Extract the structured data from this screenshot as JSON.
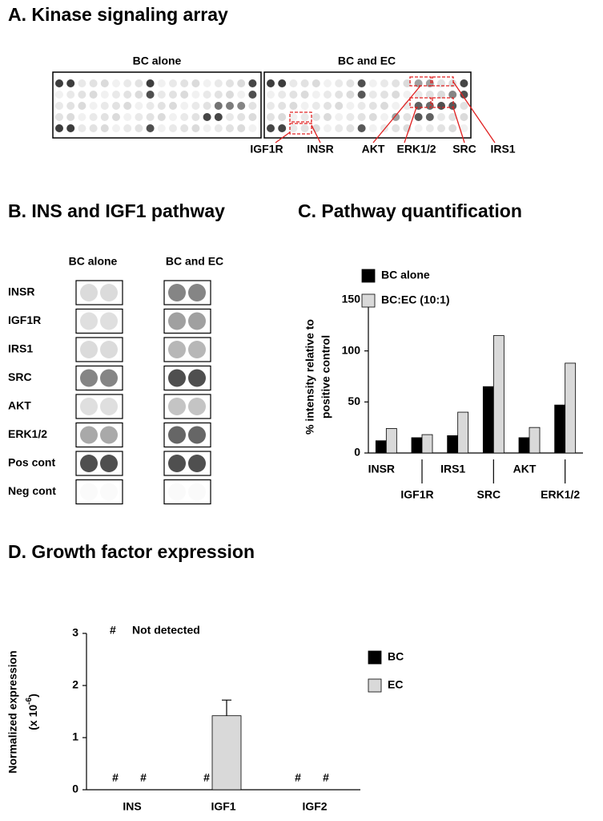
{
  "panel_a": {
    "title": "A. Kinase signaling array",
    "blots": [
      "BC alone",
      "BC and EC"
    ],
    "labels": [
      "IGF1R",
      "INSR",
      "AKT",
      "ERK1/2",
      "SRC",
      "IRS1"
    ]
  },
  "panel_b": {
    "title": "B. INS and IGF1 pathway",
    "columns": [
      "BC alone",
      "BC and EC"
    ],
    "rows": [
      "INSR",
      "IGF1R",
      "IRS1",
      "SRC",
      "AKT",
      "ERK1/2",
      "Pos cont",
      "Neg cont"
    ]
  },
  "chart_data": [
    {
      "type": "bar",
      "title": "C. Pathway quantification",
      "y_label": [
        "% intensity relative to",
        "positive control"
      ],
      "categories": [
        "INSR",
        "IGF1R",
        "IRS1",
        "SRC",
        "AKT",
        "ERK1/2"
      ],
      "series": [
        {
          "name": "BC alone",
          "color": "#000000",
          "values": [
            12,
            15,
            17,
            65,
            15,
            47
          ]
        },
        {
          "name": "BC:EC (10:1)",
          "color": "#d9d9d9",
          "values": [
            24,
            18,
            40,
            115,
            25,
            88
          ]
        }
      ],
      "ylim": [
        0,
        150
      ],
      "yticks": [
        0,
        50,
        100,
        150
      ],
      "legend": "top-left"
    },
    {
      "type": "bar",
      "title": "D. Growth factor expression",
      "y_label": [
        "Normalized expression",
        "(x 10",
        "-6",
        ")"
      ],
      "annotation": {
        "symbol": "#",
        "text": "Not detected"
      },
      "categories": [
        "INS",
        "IGF1",
        "IGF2"
      ],
      "series": [
        {
          "name": "BC",
          "color": "#000000",
          "values": [
            null,
            null,
            null
          ],
          "value_labels": [
            "#",
            "#",
            "#"
          ]
        },
        {
          "name": "EC",
          "color": "#d9d9d9",
          "values": [
            null,
            1.42,
            null
          ],
          "errors": [
            null,
            0.3,
            null
          ],
          "value_labels": [
            "#",
            null,
            "#"
          ]
        }
      ],
      "ylim": [
        0,
        3
      ],
      "yticks": [
        0,
        1,
        2,
        3
      ],
      "legend": "right"
    }
  ]
}
